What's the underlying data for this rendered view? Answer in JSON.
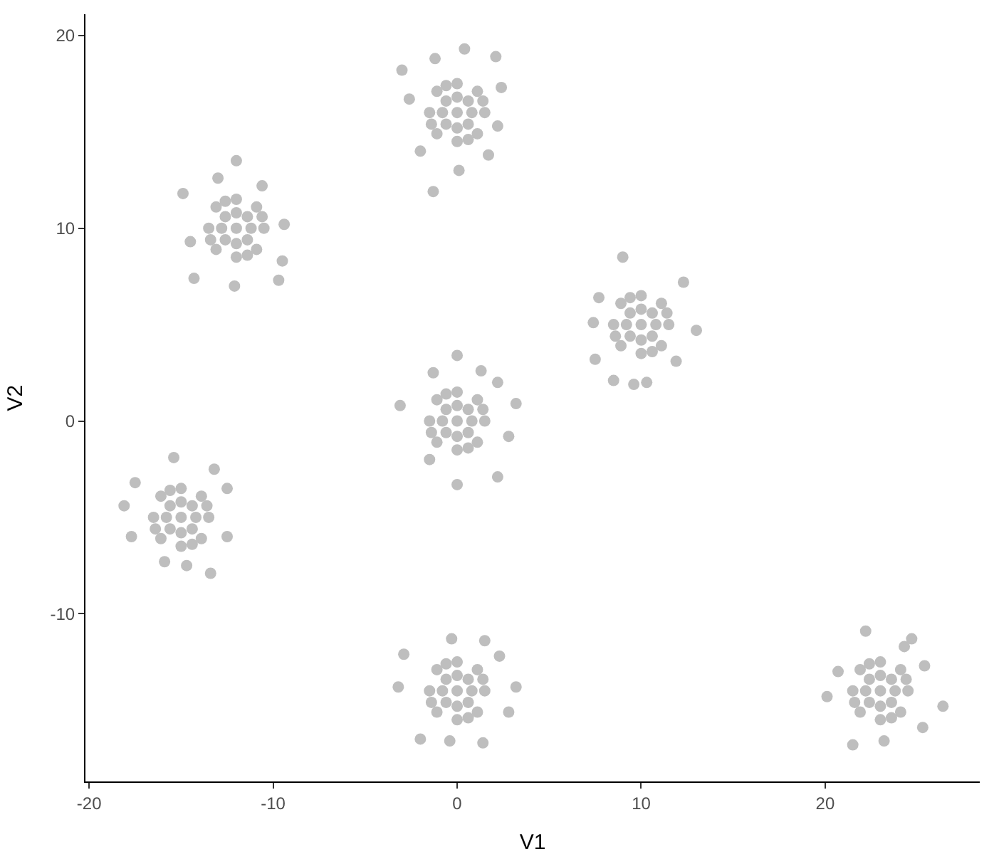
{
  "chart_data": {
    "type": "scatter",
    "xlabel": "V1",
    "ylabel": "V2",
    "xlim": [
      -20.2,
      28.4
    ],
    "ylim": [
      -18.7,
      21.1
    ],
    "xticks": [
      -20,
      -10,
      0,
      10,
      20
    ],
    "yticks": [
      -10,
      0,
      10,
      20
    ],
    "series": [
      {
        "color": "#bebebe",
        "x": [
          0,
          0.8,
          -0.8,
          0,
          0,
          0.6,
          -0.6,
          0.6,
          -0.6,
          1.5,
          -1.5,
          0,
          0,
          1.1,
          -1.1,
          1.1,
          -1.1,
          1.4,
          -1.4,
          0.6,
          -0.6,
          0.4,
          -3,
          -1.3,
          0.1,
          2.1,
          -1.2,
          2.4,
          -2.6,
          1.7,
          -2,
          2.2
        ],
        "values": [
          16,
          16,
          16,
          16.8,
          15.2,
          16.6,
          16.6,
          15.4,
          15.4,
          16,
          16,
          17.5,
          14.5,
          17.1,
          17.1,
          14.9,
          14.9,
          16.6,
          15.4,
          14.6,
          17.4,
          19.3,
          18.2,
          11.9,
          13,
          18.9,
          18.8,
          17.3,
          16.7,
          13.8,
          14,
          15.3
        ]
      },
      {
        "color": "#bebebe",
        "x": [
          -12,
          -11.2,
          -12.8,
          -12,
          -12,
          -11.4,
          -12.6,
          -11.4,
          -12.6,
          -10.5,
          -13.5,
          -12,
          -12,
          -10.9,
          -13.1,
          -10.9,
          -13.1,
          -10.6,
          -13.4,
          -11.4,
          -12.6,
          -12,
          -14.9,
          -12.1,
          -9.5,
          -9.7,
          -13,
          -10.6,
          -14.3,
          -9.4,
          -14.5
        ],
        "values": [
          10,
          10,
          10,
          10.8,
          9.2,
          10.6,
          10.6,
          9.4,
          9.4,
          10,
          10,
          11.5,
          8.5,
          11.1,
          11.1,
          8.9,
          8.9,
          10.6,
          9.4,
          8.6,
          11.4,
          13.5,
          11.8,
          7,
          8.3,
          7.3,
          12.6,
          12.2,
          7.4,
          10.2,
          9.3
        ]
      },
      {
        "color": "#bebebe",
        "x": [
          10,
          10.8,
          9.2,
          10,
          10,
          10.6,
          9.4,
          10.6,
          9.4,
          11.5,
          8.5,
          10,
          10,
          11.1,
          8.9,
          11.1,
          8.9,
          11.4,
          8.6,
          10.6,
          9.4,
          9,
          12.3,
          13,
          7.7,
          7.5,
          8.5,
          9.6,
          10.3,
          11.9,
          7.4
        ],
        "values": [
          5,
          5,
          5,
          5.8,
          4.2,
          5.6,
          5.6,
          4.4,
          4.4,
          5,
          5,
          6.5,
          3.5,
          6.1,
          6.1,
          3.9,
          3.9,
          5.6,
          4.4,
          3.6,
          6.4,
          8.5,
          7.2,
          4.7,
          6.4,
          3.2,
          2.1,
          1.9,
          2,
          3.1,
          5.1
        ]
      },
      {
        "color": "#bebebe",
        "x": [
          0,
          0.8,
          -0.8,
          0,
          0,
          0.6,
          -0.6,
          0.6,
          -0.6,
          1.5,
          -1.5,
          0,
          0,
          1.1,
          -1.1,
          1.1,
          -1.1,
          1.4,
          -1.4,
          0.6,
          -0.6,
          0,
          3.2,
          0,
          2.2,
          -3.1,
          -1.3,
          1.3,
          2.8,
          -1.5,
          2.2
        ],
        "values": [
          0,
          0,
          0,
          0.8,
          -0.8,
          0.6,
          0.6,
          -0.6,
          -0.6,
          0,
          0,
          1.5,
          -1.5,
          1.1,
          1.1,
          -1.1,
          -1.1,
          0.6,
          -0.6,
          -1.4,
          1.4,
          3.4,
          0.9,
          -3.3,
          -2.9,
          0.8,
          2.5,
          2.6,
          -0.8,
          -2,
          2
        ]
      },
      {
        "color": "#bebebe",
        "x": [
          -15,
          -14.2,
          -15.8,
          -15,
          -15,
          -14.4,
          -15.6,
          -14.4,
          -15.6,
          -13.5,
          -16.5,
          -15,
          -15,
          -13.9,
          -16.1,
          -13.9,
          -16.1,
          -13.6,
          -16.4,
          -14.4,
          -15.6,
          -18.1,
          -15.4,
          -17.7,
          -13.4,
          -14.7,
          -12.5,
          -13.2,
          -12.5,
          -17.5,
          -15.9
        ],
        "values": [
          -5,
          -5,
          -5,
          -4.2,
          -5.8,
          -4.4,
          -4.4,
          -5.6,
          -5.6,
          -5,
          -5,
          -3.5,
          -6.5,
          -3.9,
          -3.9,
          -6.1,
          -6.1,
          -4.4,
          -5.6,
          -6.4,
          -3.6,
          -4.4,
          -1.9,
          -6,
          -7.9,
          -7.5,
          -3.5,
          -2.5,
          -6,
          -3.2,
          -7.3
        ]
      },
      {
        "color": "#bebebe",
        "x": [
          0,
          0.8,
          -0.8,
          0,
          0,
          0.6,
          -0.6,
          0.6,
          -0.6,
          1.5,
          -1.5,
          0,
          0,
          1.1,
          -1.1,
          1.1,
          -1.1,
          1.4,
          -1.4,
          0.6,
          -0.6,
          -3.2,
          -0.3,
          1.5,
          1.4,
          -0.4,
          3.2,
          -2.9,
          2.3,
          -2,
          2.8
        ],
        "values": [
          -14,
          -14,
          -14,
          -13.2,
          -14.8,
          -13.4,
          -13.4,
          -14.6,
          -14.6,
          -14,
          -14,
          -12.5,
          -15.5,
          -12.9,
          -12.9,
          -15.1,
          -15.1,
          -13.4,
          -14.6,
          -15.4,
          -12.6,
          -13.8,
          -11.3,
          -11.4,
          -16.7,
          -16.6,
          -13.8,
          -12.1,
          -12.2,
          -16.5,
          -15.1
        ]
      },
      {
        "color": "#bebebe",
        "x": [
          23,
          23.8,
          22.2,
          23,
          23,
          23.6,
          22.4,
          23.6,
          22.4,
          24.5,
          21.5,
          23,
          23,
          24.1,
          21.9,
          24.1,
          21.9,
          24.4,
          21.6,
          23.6,
          22.4,
          22.2,
          26.4,
          21.5,
          23.2,
          20.1,
          25.4,
          24.3,
          25.3,
          20.7,
          24.7
        ],
        "values": [
          -14,
          -14,
          -14,
          -13.2,
          -14.8,
          -13.4,
          -13.4,
          -14.6,
          -14.6,
          -14,
          -14,
          -12.5,
          -15.5,
          -12.9,
          -12.9,
          -15.1,
          -15.1,
          -13.4,
          -14.6,
          -15.4,
          -12.6,
          -10.9,
          -14.8,
          -16.8,
          -16.6,
          -14.3,
          -12.7,
          -11.7,
          -15.9,
          -13,
          -11.3
        ]
      }
    ]
  }
}
